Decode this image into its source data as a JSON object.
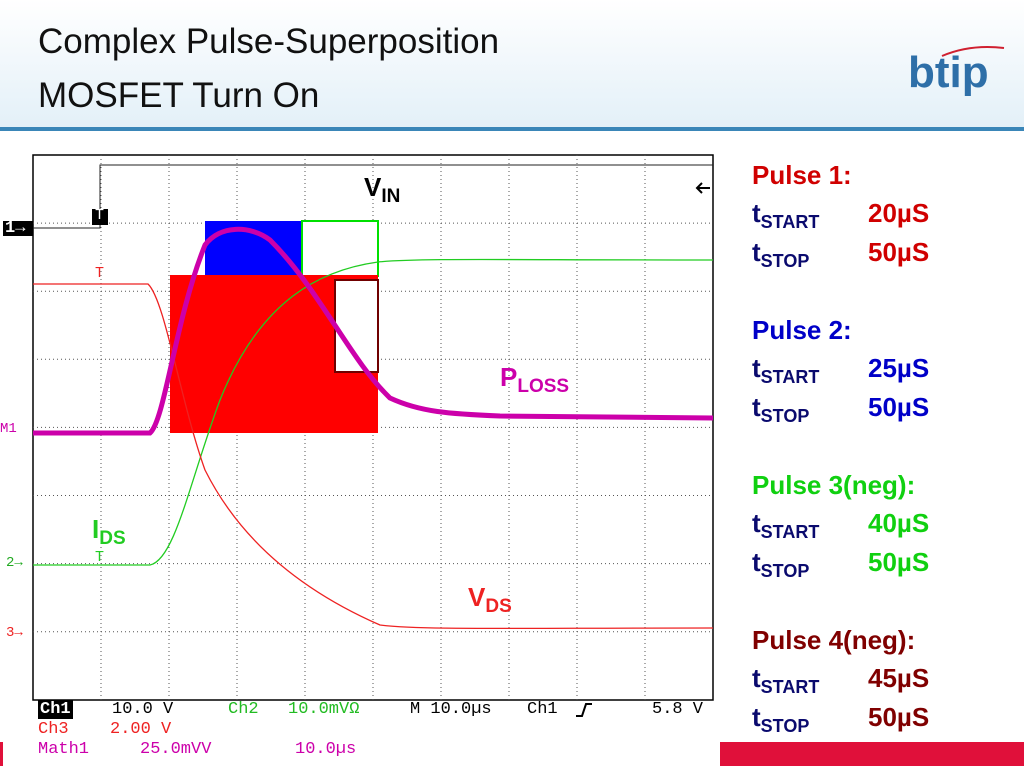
{
  "header": {
    "title_lines": [
      "Complex Pulse-Superposition",
      "MOSFET Turn On"
    ],
    "logo": "btip"
  },
  "scope": {
    "channel_markers": [
      "1→",
      "M1",
      "2→",
      "3→"
    ],
    "trigger_marks": [
      "T",
      "T",
      "T"
    ],
    "trace_labels": [
      {
        "main": "V",
        "sub": "IN"
      },
      {
        "main": "P",
        "sub": "LOSS"
      },
      {
        "main": "I",
        "sub": "DS"
      },
      {
        "main": "V",
        "sub": "DS"
      }
    ],
    "readout": {
      "ch1": "Ch1",
      "ch1_scale": "10.0 V",
      "ch2": "Ch2",
      "ch2_scale": "10.0mVΩ",
      "timebase": "M 10.0µs",
      "trigger_source": "Ch1",
      "trigger_level": "5.8 V",
      "ch3": "Ch3",
      "ch3_scale": "2.00 V",
      "math": "Math1",
      "math_scale": "25.0mVV",
      "math_time": "10.0µs"
    }
  },
  "pulses": [
    {
      "title": "Pulse 1:",
      "color": "#d00000",
      "rows": [
        {
          "label": "t",
          "sub": "START",
          "value": "20µS"
        },
        {
          "label": "t",
          "sub": "STOP",
          "value": "50µS"
        }
      ]
    },
    {
      "title": "Pulse 2:",
      "color": "#0000c8",
      "rows": [
        {
          "label": "t",
          "sub": "START",
          "value": "25µS"
        },
        {
          "label": "t",
          "sub": "STOP",
          "value": "50µS"
        }
      ]
    },
    {
      "title": "Pulse 3(neg):",
      "color": "#10d010",
      "rows": [
        {
          "label": "t",
          "sub": "START",
          "value": "40µS"
        },
        {
          "label": "t",
          "sub": "STOP",
          "value": "50µS"
        }
      ]
    },
    {
      "title": "Pulse 4(neg):",
      "color": "#800000",
      "rows": [
        {
          "label": "t",
          "sub": "START",
          "value": "45µS"
        },
        {
          "label": "t",
          "sub": "STOP",
          "value": "50µS"
        }
      ]
    }
  ]
}
